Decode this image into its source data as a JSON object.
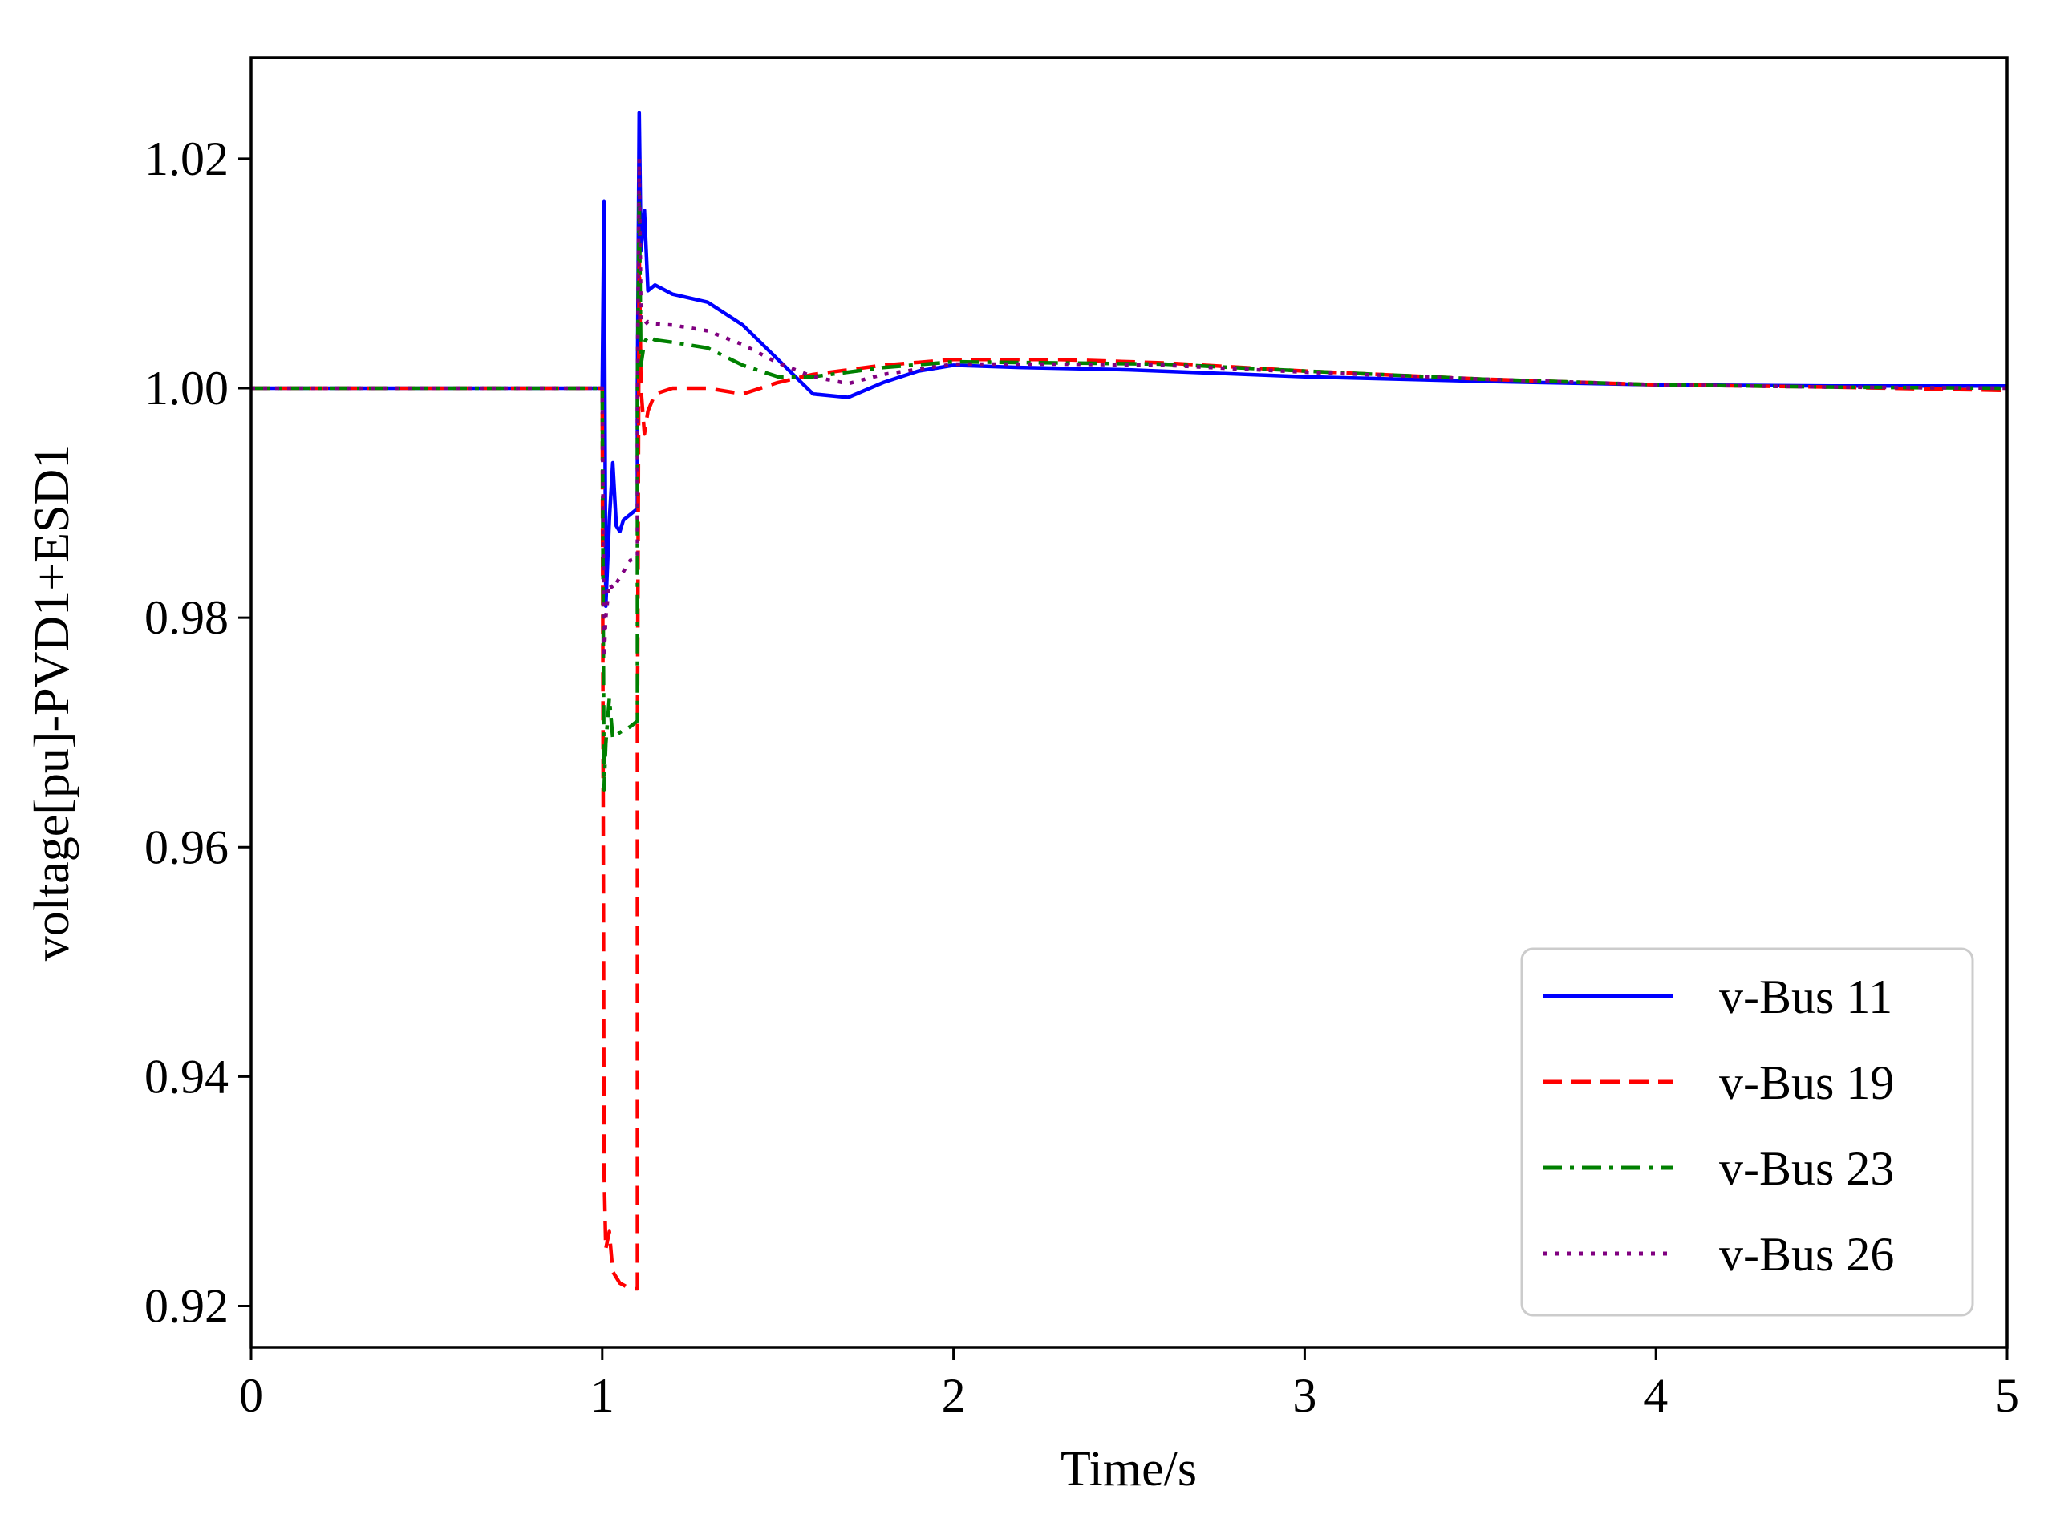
{
  "chart_data": {
    "type": "line",
    "title": "",
    "xlabel": "Time/s",
    "ylabel": "voltage[pu]-PVD1+ESD1",
    "xlim": [
      0,
      5
    ],
    "ylim": [
      0.9164,
      1.0288
    ],
    "x_ticks": [
      0,
      1,
      2,
      3,
      4,
      5
    ],
    "x_tick_labels": [
      "0",
      "1",
      "2",
      "3",
      "4",
      "5"
    ],
    "y_ticks": [
      0.92,
      0.94,
      0.96,
      0.98,
      1.0,
      1.02
    ],
    "y_tick_labels": [
      "0.92",
      "0.94",
      "0.96",
      "0.98",
      "1.00",
      "1.02"
    ],
    "grid": false,
    "legend_position": "lower-right",
    "series": [
      {
        "name": "v-Bus 11",
        "color": "#0000ff",
        "dash": "solid",
        "x": [
          0,
          0.99,
          1.0,
          1.005,
          1.01,
          1.02,
          1.03,
          1.04,
          1.05,
          1.06,
          1.08,
          1.1,
          1.1,
          1.105,
          1.11,
          1.12,
          1.13,
          1.15,
          1.2,
          1.3,
          1.4,
          1.5,
          1.6,
          1.7,
          1.8,
          1.9,
          2.0,
          2.2,
          2.5,
          3.0,
          3.5,
          4.0,
          4.5,
          5.0
        ],
        "y": [
          1.0,
          1.0,
          1.0,
          1.0163,
          0.981,
          0.9885,
          0.9935,
          0.988,
          0.9875,
          0.9885,
          0.989,
          0.9895,
          1.0,
          1.024,
          1.012,
          1.0155,
          1.0085,
          1.009,
          1.0082,
          1.0075,
          1.0055,
          1.0025,
          0.9995,
          0.9992,
          1.0005,
          1.0015,
          1.002,
          1.0018,
          1.0016,
          1.001,
          1.0006,
          1.0003,
          1.0002,
          1.0002
        ]
      },
      {
        "name": "v-Bus 19",
        "color": "#ff0000",
        "dash": "dashed",
        "x": [
          0,
          0.99,
          1.0,
          1.002,
          1.005,
          1.01,
          1.02,
          1.03,
          1.05,
          1.08,
          1.1,
          1.1,
          1.105,
          1.11,
          1.12,
          1.13,
          1.15,
          1.2,
          1.3,
          1.4,
          1.5,
          1.6,
          1.8,
          2.0,
          2.3,
          2.6,
          3.0,
          3.5,
          4.0,
          4.5,
          5.0
        ],
        "y": [
          1.0,
          1.0,
          1.0,
          0.972,
          0.932,
          0.925,
          0.9265,
          0.923,
          0.922,
          0.9215,
          0.9215,
          0.97,
          1.012,
          1.0,
          0.996,
          0.998,
          0.9995,
          1.0,
          1.0,
          0.9995,
          1.0005,
          1.0012,
          1.002,
          1.0025,
          1.0025,
          1.0022,
          1.0015,
          1.0008,
          1.0003,
          1.0001,
          0.9998
        ]
      },
      {
        "name": "v-Bus 23",
        "color": "#008000",
        "dash": "dashdot",
        "x": [
          0,
          0.99,
          1.0,
          1.002,
          1.005,
          1.01,
          1.02,
          1.03,
          1.05,
          1.08,
          1.1,
          1.1,
          1.105,
          1.11,
          1.12,
          1.13,
          1.15,
          1.2,
          1.3,
          1.4,
          1.5,
          1.6,
          1.8,
          2.0,
          2.3,
          2.6,
          3.0,
          3.5,
          4.0,
          4.5,
          5.0
        ],
        "y": [
          1.0,
          1.0,
          1.0,
          0.984,
          0.965,
          0.969,
          0.973,
          0.9695,
          0.97,
          0.9705,
          0.971,
          1.0,
          1.017,
          1.002,
          1.004,
          1.0045,
          1.0042,
          1.004,
          1.0035,
          1.002,
          1.001,
          1.001,
          1.0018,
          1.0023,
          1.0022,
          1.0021,
          1.0015,
          1.0008,
          1.0003,
          1.0001,
          1.0
        ]
      },
      {
        "name": "v-Bus 26",
        "color": "#800080",
        "dash": "dotted",
        "x": [
          0,
          0.99,
          1.0,
          1.002,
          1.005,
          1.01,
          1.02,
          1.03,
          1.05,
          1.08,
          1.1,
          1.1,
          1.105,
          1.11,
          1.12,
          1.13,
          1.15,
          1.2,
          1.3,
          1.4,
          1.5,
          1.6,
          1.7,
          1.8,
          2.0,
          2.3,
          2.6,
          3.0,
          3.5,
          4.0,
          4.5,
          5.0
        ],
        "y": [
          1.0,
          1.0,
          1.0,
          0.99,
          0.9765,
          0.98,
          0.983,
          0.9825,
          0.9835,
          0.985,
          0.9852,
          1.0,
          1.02,
          1.006,
          1.0055,
          1.0058,
          1.0056,
          1.0055,
          1.005,
          1.0038,
          1.0022,
          1.001,
          1.0004,
          1.0012,
          1.0021,
          1.0021,
          1.002,
          1.0014,
          1.0008,
          1.0003,
          1.0001,
          1.0
        ]
      }
    ]
  }
}
